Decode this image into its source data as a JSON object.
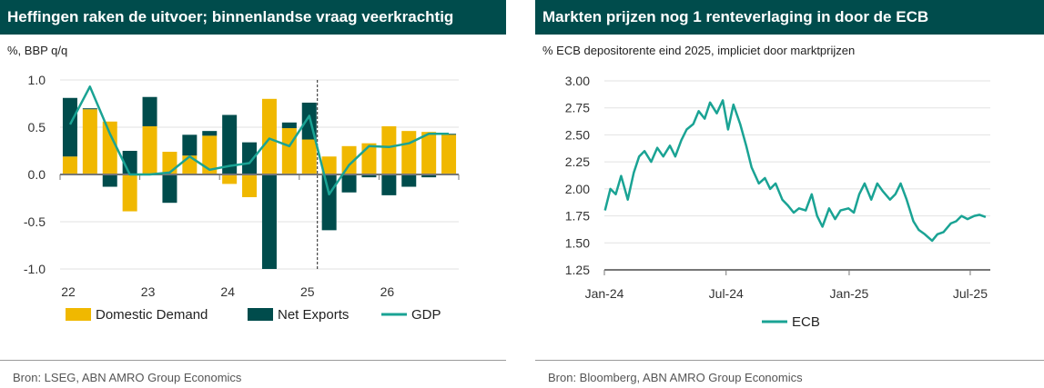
{
  "left": {
    "title": "Heffingen raken de uitvoer; binnenlandse vraag veerkrachtig",
    "subtitle": "%, BBP q/q",
    "source": "Bron: LSEG, ABN AMRO Group Economics",
    "colors": {
      "domestic": "#f0b800",
      "net_exports": "#004c4c",
      "gdp": "#1aa394",
      "axis": "#777777",
      "grid": "#e2e2e2"
    }
  },
  "right": {
    "title": "Markten prijzen nog 1 renteverlaging in door de ECB",
    "subtitle": "% ECB depositorente eind 2025, impliciet door marktprijzen",
    "source": "Bron: Bloomberg, ABN AMRO Group Economics",
    "colors": {
      "line": "#1aa394",
      "axis": "#777777",
      "grid": "#e2e2e2"
    }
  },
  "chart_data": [
    {
      "type": "bar",
      "stacked": true,
      "title": "Heffingen raken de uitvoer; binnenlandse vraag veerkrachtig",
      "ylabel": "%, BBP q/q",
      "ylim": [
        -1.0,
        1.0
      ],
      "yticks": [
        "1.0",
        "0.5",
        "0.0",
        "-0.5",
        "-1.0"
      ],
      "year_labels": [
        "22",
        "23",
        "24",
        "25",
        "26"
      ],
      "categories": [
        "2022Q1",
        "2022Q2",
        "2022Q3",
        "2022Q4",
        "2023Q1",
        "2023Q2",
        "2023Q3",
        "2023Q4",
        "2024Q1",
        "2024Q2",
        "2024Q3",
        "2024Q4",
        "2025Q1",
        "2025Q2",
        "2025Q3",
        "2025Q4",
        "2026Q1",
        "2026Q2",
        "2026Q3",
        "2026Q4"
      ],
      "forecast_start": "2025Q2",
      "series": [
        {
          "name": "Domestic Demand",
          "kind": "bar",
          "values": [
            0.19,
            0.69,
            0.56,
            -0.39,
            0.51,
            0.24,
            0.2,
            0.41,
            -0.1,
            -0.24,
            0.8,
            0.49,
            0.37,
            0.19,
            0.3,
            0.33,
            0.51,
            0.46,
            0.45,
            0.42
          ]
        },
        {
          "name": "Net Exports",
          "kind": "bar",
          "values": [
            0.62,
            0.01,
            -0.13,
            0.25,
            0.31,
            -0.3,
            0.22,
            0.05,
            0.63,
            0.34,
            -1.0,
            0.06,
            0.39,
            -0.59,
            -0.19,
            -0.03,
            -0.22,
            -0.13,
            -0.03,
            0.01
          ]
        },
        {
          "name": "GDP",
          "kind": "line",
          "values": [
            0.53,
            0.93,
            0.43,
            0.0,
            0.0,
            0.02,
            0.19,
            0.05,
            0.09,
            0.12,
            0.38,
            0.3,
            0.62,
            -0.21,
            0.1,
            0.3,
            0.29,
            0.33,
            0.43,
            0.43
          ]
        }
      ]
    },
    {
      "type": "line",
      "title": "Markten prijzen nog 1 renteverlaging in door de ECB",
      "ylabel": "% ECB depositorente eind 2025, impliciet door marktprijzen",
      "ylim": [
        1.25,
        3.0
      ],
      "yticks": [
        "3.00",
        "2.75",
        "2.50",
        "2.25",
        "2.00",
        "1.75",
        "1.50",
        "1.25"
      ],
      "xlim": [
        "2024-01-01",
        "2025-07-31"
      ],
      "xticks": [
        {
          "date": "2024-01-01",
          "label": "Jan-24"
        },
        {
          "date": "2024-07-01",
          "label": "Jul-24"
        },
        {
          "date": "2025-01-01",
          "label": "Jan-25"
        },
        {
          "date": "2025-07-01",
          "label": "Jul-25"
        }
      ],
      "series": [
        {
          "name": "ECB",
          "x": [
            "2024-01-02",
            "2024-01-10",
            "2024-01-18",
            "2024-01-26",
            "2024-02-05",
            "2024-02-14",
            "2024-02-22",
            "2024-03-01",
            "2024-03-11",
            "2024-03-20",
            "2024-03-29",
            "2024-04-08",
            "2024-04-16",
            "2024-04-25",
            "2024-05-03",
            "2024-05-13",
            "2024-05-21",
            "2024-05-30",
            "2024-06-07",
            "2024-06-17",
            "2024-06-26",
            "2024-07-04",
            "2024-07-12",
            "2024-07-22",
            "2024-07-31",
            "2024-08-08",
            "2024-08-19",
            "2024-08-28",
            "2024-09-05",
            "2024-09-13",
            "2024-09-23",
            "2024-10-01",
            "2024-10-10",
            "2024-10-18",
            "2024-10-28",
            "2024-11-06",
            "2024-11-14",
            "2024-11-22",
            "2024-12-02",
            "2024-12-11",
            "2024-12-19",
            "2024-12-31",
            "2025-01-08",
            "2025-01-16",
            "2025-01-24",
            "2025-02-03",
            "2025-02-12",
            "2025-02-20",
            "2025-03-03",
            "2025-03-11",
            "2025-03-19",
            "2025-03-28",
            "2025-04-07",
            "2025-04-15",
            "2025-04-24",
            "2025-05-05",
            "2025-05-13",
            "2025-05-22",
            "2025-06-02",
            "2025-06-10",
            "2025-06-18",
            "2025-06-27",
            "2025-07-07",
            "2025-07-15",
            "2025-07-24"
          ],
          "values": [
            1.8,
            2.0,
            1.95,
            2.12,
            1.9,
            2.15,
            2.3,
            2.35,
            2.25,
            2.38,
            2.3,
            2.4,
            2.3,
            2.45,
            2.55,
            2.6,
            2.72,
            2.65,
            2.8,
            2.7,
            2.82,
            2.55,
            2.78,
            2.6,
            2.4,
            2.2,
            2.05,
            2.1,
            2.0,
            2.05,
            1.9,
            1.85,
            1.78,
            1.82,
            1.8,
            1.95,
            1.75,
            1.65,
            1.82,
            1.72,
            1.8,
            1.82,
            1.78,
            1.95,
            2.05,
            1.9,
            2.05,
            1.98,
            1.9,
            1.95,
            2.05,
            1.9,
            1.7,
            1.62,
            1.58,
            1.52,
            1.58,
            1.6,
            1.68,
            1.7,
            1.75,
            1.72,
            1.75,
            1.76,
            1.74
          ]
        }
      ]
    }
  ],
  "legend_left": [
    "Domestic Demand",
    "Net Exports",
    "GDP"
  ],
  "legend_right": [
    "ECB"
  ]
}
